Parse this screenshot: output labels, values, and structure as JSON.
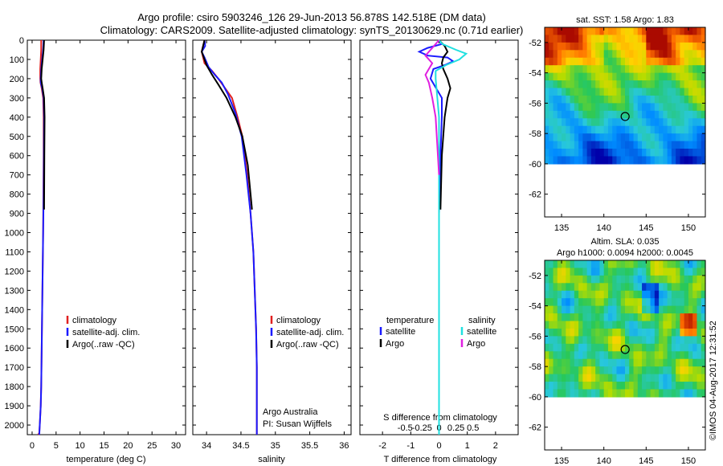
{
  "header": {
    "line1": "Argo profile: csiro 5903246_126 29-Jun-2013 56.878S 142.518E (DM data)",
    "line2": "Climatology: CARS2009. Satellite-adjusted climatology: synTS_20130629.nc (0.71d earlier)"
  },
  "chart_data": [
    {
      "id": "temperature",
      "type": "line",
      "xlabel": "temperature (deg C)",
      "xlim": [
        -1,
        32
      ],
      "xticks": [
        0,
        5,
        10,
        15,
        20,
        25,
        30
      ],
      "ylim": [
        0,
        2050
      ],
      "yticks": [
        0,
        100,
        200,
        300,
        400,
        500,
        600,
        700,
        800,
        900,
        1000,
        1100,
        1200,
        1300,
        1400,
        1500,
        1600,
        1700,
        1800,
        1900,
        2000
      ],
      "legend": {
        "position": "lower-right",
        "entries": [
          "climatology",
          "satellite-adj. clim.",
          "Argo(..raw -QC)"
        ]
      },
      "series": [
        {
          "name": "climatology",
          "color": "#e02020",
          "x": [
            1.9,
            1.9,
            1.8,
            1.7,
            1.7,
            1.75,
            2.0,
            2.3,
            2.4,
            2.4,
            2.35,
            2.3,
            2.2,
            2.1,
            2.0,
            1.9,
            1.8,
            1.6,
            1.5,
            1.4,
            1.3
          ],
          "y": [
            0,
            50,
            100,
            150,
            200,
            220,
            250,
            300,
            400,
            600,
            800,
            1000,
            1200,
            1400,
            1600,
            1800,
            1900,
            2000,
            2040,
            2045,
            2050
          ]
        },
        {
          "name": "satellite-adj. clim.",
          "color": "#1a1aff",
          "x": [
            2.4,
            2.3,
            2.1,
            1.9,
            1.8,
            1.8,
            2.1,
            2.4,
            2.5,
            2.45,
            2.4,
            2.3,
            2.2,
            2.1,
            2.0,
            1.9,
            1.8,
            1.6,
            1.5
          ],
          "y": [
            0,
            50,
            100,
            150,
            200,
            220,
            250,
            300,
            400,
            600,
            800,
            1000,
            1200,
            1400,
            1600,
            1800,
            1900,
            2000,
            2050
          ]
        },
        {
          "name": "Argo(..raw -QC)",
          "color": "#000000",
          "x": [
            2.5,
            2.4,
            2.2,
            2.0,
            1.9,
            2.0,
            2.2,
            2.5,
            2.6,
            2.55,
            2.5
          ],
          "y": [
            0,
            50,
            100,
            150,
            200,
            220,
            250,
            300,
            400,
            600,
            880
          ]
        }
      ]
    },
    {
      "id": "salinity",
      "type": "line",
      "xlabel": "salinity",
      "xlim": [
        33.8,
        36.1
      ],
      "xticks": [
        34,
        34.5,
        35,
        35.5,
        36
      ],
      "xticklabels": [
        "34",
        "34.5",
        "35",
        "35.5",
        "36"
      ],
      "ylim": [
        0,
        2050
      ],
      "legend": {
        "position": "lower-right",
        "entries": [
          "climatology",
          "satellite-adj. clim.",
          "Argo(..raw -QC)"
        ]
      },
      "annotation": [
        "Argo Australia",
        "PI: Susan Wijffels"
      ],
      "series": [
        {
          "name": "climatology",
          "color": "#e02020",
          "x": [
            33.97,
            33.93,
            33.97,
            34.08,
            34.17,
            34.27,
            34.37,
            34.45,
            34.52,
            34.59,
            34.64,
            34.68,
            34.7,
            34.72,
            34.73,
            34.73,
            34.73,
            34.73
          ],
          "y": [
            0,
            60,
            120,
            160,
            200,
            250,
            300,
            400,
            500,
            700,
            900,
            1100,
            1300,
            1500,
            1700,
            1900,
            2000,
            2050
          ]
        },
        {
          "name": "satellite-adj. clim.",
          "color": "#1a1aff",
          "x": [
            33.97,
            33.98,
            33.93,
            33.97,
            34.03,
            34.12,
            34.22,
            34.31,
            34.42,
            34.51,
            34.58,
            34.64,
            34.68,
            34.7,
            34.72,
            34.73,
            34.73,
            34.73
          ],
          "y": [
            0,
            30,
            60,
            90,
            140,
            180,
            220,
            280,
            380,
            500,
            700,
            900,
            1100,
            1300,
            1500,
            1700,
            1900,
            2050
          ]
        },
        {
          "name": "Argo(..raw -QC)",
          "color": "#000000",
          "x": [
            33.97,
            33.93,
            34.0,
            34.08,
            34.17,
            34.29,
            34.42,
            34.52,
            34.6,
            34.64,
            34.66
          ],
          "y": [
            0,
            60,
            130,
            180,
            230,
            300,
            400,
            500,
            650,
            800,
            880
          ]
        }
      ]
    },
    {
      "id": "differences",
      "type": "line",
      "xlabel_bottom": "T difference from climatology",
      "xlim_T": [
        -2.8,
        2.8
      ],
      "xticks_T": [
        -2,
        -1,
        0,
        1,
        2
      ],
      "xticklabels_T": [
        "-2",
        "-1",
        "0",
        "1",
        "2"
      ],
      "xlabel_top": "S difference from climatology",
      "xticks_S": [
        -0.5,
        -0.25,
        0,
        0.25,
        0.5
      ],
      "xticklabels_S": [
        "-0.5",
        "-0.25",
        "0",
        "0.25",
        "0.5"
      ],
      "ylim": [
        0,
        2050
      ],
      "legend": {
        "temperature_title": "temperature",
        "salinity_title": "salinity",
        "entries": [
          "satellite",
          "Argo",
          "satellite",
          "Argo"
        ]
      },
      "series": [
        {
          "name": "temperature satellite",
          "color": "#1a1aff",
          "x": [
            0,
            0.1,
            -0.4,
            -0.7,
            -0.4,
            0.3,
            0.5,
            0.2,
            -0.2,
            -0.3,
            0.1,
            0.1,
            0.05,
            0,
            0
          ],
          "y": [
            0,
            20,
            40,
            60,
            80,
            90,
            110,
            130,
            150,
            200,
            300,
            400,
            600,
            900,
            2050
          ]
        },
        {
          "name": "temperature Argo",
          "color": "#000000",
          "x": [
            0,
            0.2,
            0.3,
            0.15,
            0.1,
            0.15,
            0.3,
            0.4,
            0.3,
            0.2,
            0.1,
            0.05
          ],
          "y": [
            0,
            30,
            60,
            90,
            120,
            150,
            200,
            250,
            300,
            400,
            600,
            880
          ]
        },
        {
          "name": "salinity satellite",
          "color": "#20e0e0",
          "x": [
            0,
            0.05,
            0.25,
            0.4,
            0.3,
            0.1,
            -0.05,
            -0.05,
            0,
            0
          ],
          "y": [
            0,
            20,
            50,
            70,
            100,
            130,
            160,
            200,
            400,
            2050
          ]
        },
        {
          "name": "salinity Argo",
          "color": "#e020e0",
          "x": [
            0,
            -0.1,
            -0.2,
            -0.1,
            -0.15,
            -0.2,
            -0.15,
            -0.1,
            -0.05,
            0
          ],
          "y": [
            0,
            40,
            80,
            120,
            150,
            180,
            220,
            300,
            400,
            700
          ]
        }
      ]
    },
    {
      "id": "sst-map",
      "type": "heatmap",
      "title": "sat. SST: 1.58  Argo: 1.83",
      "xlim": [
        133,
        152
      ],
      "xticks": [
        135,
        140,
        145,
        150
      ],
      "ylim": [
        -63.5,
        -51
      ],
      "yticks": [
        -52,
        -54,
        -56,
        -58,
        -60,
        -62
      ],
      "data_lat_range": [
        -60,
        -51
      ],
      "marker": {
        "lon": 142.518,
        "lat": -56.878
      }
    },
    {
      "id": "sla-map",
      "type": "heatmap",
      "title": "Altim. SLA: 0.035",
      "subtitle": "Argo h1000: 0.0094 h2000: 0.0045",
      "xlim": [
        133,
        152
      ],
      "xticks": [
        135,
        140,
        145,
        150
      ],
      "ylim": [
        -63.5,
        -51
      ],
      "yticks": [
        -52,
        -54,
        -56,
        -58,
        -60,
        -62
      ],
      "data_lat_range": [
        -60,
        -51
      ],
      "marker": {
        "lon": 142.518,
        "lat": -56.878
      }
    }
  ],
  "footer": {
    "stamp": "©IMOS 04-Aug-2017 12:31:52"
  }
}
